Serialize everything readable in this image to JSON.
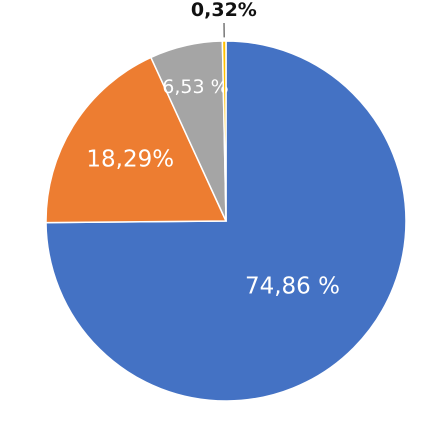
{
  "chart_data": {
    "type": "pie",
    "values": [
      74.86,
      18.29,
      6.53,
      0.32
    ],
    "value_labels": [
      "74,86 %",
      "18,29%",
      "6,53 %",
      "0,32%"
    ],
    "colors": [
      "#4472c4",
      "#ed7d31",
      "#a5a5a5",
      "#ffc000"
    ],
    "start_angle": 90,
    "direction": "clockwise"
  }
}
